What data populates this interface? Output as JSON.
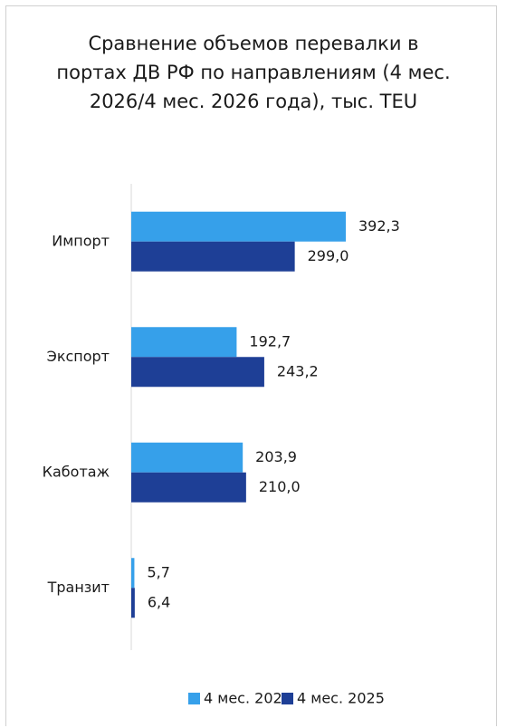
{
  "chart_data": {
    "type": "bar",
    "orientation": "horizontal",
    "title": "Сравнение объемов перевалки в портах ДВ РФ по направлениям (4 мес. 2026/4 мес. 2026 года), тыс. TEU",
    "categories": [
      "Импорт",
      "Экспорт",
      "Каботаж",
      "Транзит"
    ],
    "series": [
      {
        "name": "4 мес. 2026",
        "color": "#36a0ea",
        "values": [
          392.3,
          192.7,
          203.9,
          5.7
        ],
        "value_labels": [
          "392,3",
          "192,7",
          "203,9",
          "5,7"
        ]
      },
      {
        "name": "4 мес. 2025",
        "color": "#1e3f96",
        "values": [
          299.0,
          243.2,
          210.0,
          6.4
        ],
        "value_labels": [
          "299,0",
          "243,2",
          "210,0",
          "6,4"
        ]
      }
    ],
    "legend": "bottom"
  }
}
